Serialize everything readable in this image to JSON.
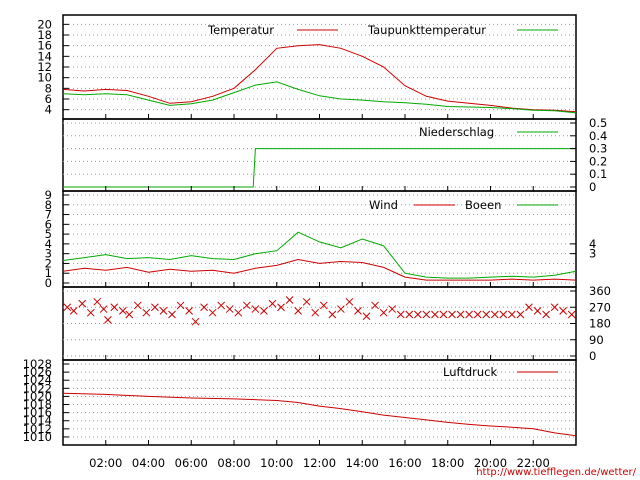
{
  "footer_url": "http://www.tiefflegen.de/wetter/",
  "colors": {
    "red": "#cc0000",
    "green": "#00aa00",
    "grid": "#9a9a9a"
  },
  "chart_data": [
    {
      "type": "line",
      "legend": [
        "Temperatur",
        "Taupunkttemperatur"
      ],
      "y_left_ticks": [
        "20",
        "18",
        "16",
        "14",
        "12",
        "10",
        "8",
        "6",
        "4"
      ],
      "ylim": [
        3,
        21
      ],
      "series": [
        {
          "name": "Temperatur",
          "color": "#cc0000",
          "points": [
            [
              0,
              7.8
            ],
            [
              1,
              7.5
            ],
            [
              2,
              7.8
            ],
            [
              3,
              7.6
            ],
            [
              4,
              6.5
            ],
            [
              5,
              5.2
            ],
            [
              6,
              5.5
            ],
            [
              7,
              6.5
            ],
            [
              8,
              8
            ],
            [
              9,
              11.5
            ],
            [
              10,
              15.5
            ],
            [
              11,
              16
            ],
            [
              12,
              16.2
            ],
            [
              13,
              15.5
            ],
            [
              14,
              14
            ],
            [
              15,
              12
            ],
            [
              16,
              8.5
            ],
            [
              17,
              6.5
            ],
            [
              18,
              5.6
            ],
            [
              19,
              5.2
            ],
            [
              20,
              4.8
            ],
            [
              21,
              4.3
            ],
            [
              22,
              4.0
            ],
            [
              23,
              3.9
            ],
            [
              24,
              3.6
            ]
          ]
        },
        {
          "name": "Taupunkttemperatur",
          "color": "#00aa00",
          "points": [
            [
              0,
              7
            ],
            [
              1,
              6.8
            ],
            [
              2,
              7
            ],
            [
              3,
              6.8
            ],
            [
              4,
              5.8
            ],
            [
              5,
              4.8
            ],
            [
              6,
              5.1
            ],
            [
              7,
              5.8
            ],
            [
              8,
              7.2
            ],
            [
              9,
              8.6
            ],
            [
              10,
              9.2
            ],
            [
              11,
              7.8
            ],
            [
              12,
              6.6
            ],
            [
              13,
              6.0
            ],
            [
              14,
              5.8
            ],
            [
              15,
              5.5
            ],
            [
              16,
              5.3
            ],
            [
              17,
              5.0
            ],
            [
              18,
              4.6
            ],
            [
              19,
              4.5
            ],
            [
              20,
              4.4
            ],
            [
              21,
              4.2
            ],
            [
              22,
              3.9
            ],
            [
              23,
              3.8
            ],
            [
              24,
              3.4
            ]
          ]
        }
      ]
    },
    {
      "type": "line",
      "legend": [
        "Niederschlag"
      ],
      "y_right_ticks": [
        "0.5",
        "0.4",
        "0.3",
        "0.2",
        "0.1",
        "0"
      ],
      "ylim": [
        0,
        0.5
      ],
      "series": [
        {
          "name": "Niederschlag",
          "color": "#00aa00",
          "points": [
            [
              0,
              0
            ],
            [
              8.9,
              0
            ],
            [
              9.0,
              0.3
            ],
            [
              24,
              0.3
            ]
          ]
        }
      ]
    },
    {
      "type": "line",
      "legend": [
        "Wind",
        "Boeen"
      ],
      "y_left_ticks": [
        "9",
        "8",
        "7",
        "6",
        "5",
        "4",
        "3",
        "2",
        "1",
        "0"
      ],
      "y_right_ticks": [
        "4",
        "3"
      ],
      "ylim": [
        0,
        9
      ],
      "series": [
        {
          "name": "Wind",
          "color": "#cc0000",
          "points": [
            [
              0,
              1.2
            ],
            [
              1,
              1.5
            ],
            [
              2,
              1.3
            ],
            [
              3,
              1.6
            ],
            [
              4,
              1.1
            ],
            [
              5,
              1.4
            ],
            [
              6,
              1.2
            ],
            [
              7,
              1.3
            ],
            [
              8,
              1.0
            ],
            [
              9,
              1.5
            ],
            [
              10,
              1.8
            ],
            [
              11,
              2.4
            ],
            [
              12,
              2.0
            ],
            [
              13,
              2.2
            ],
            [
              14,
              2.1
            ],
            [
              15,
              1.6
            ],
            [
              16,
              0.6
            ],
            [
              17,
              0.3
            ],
            [
              18,
              0.3
            ],
            [
              19,
              0.3
            ],
            [
              20,
              0.3
            ],
            [
              21,
              0.4
            ],
            [
              22,
              0.3
            ],
            [
              23,
              0.4
            ],
            [
              24,
              0.3
            ]
          ]
        },
        {
          "name": "Boeen",
          "color": "#00aa00",
          "points": [
            [
              0,
              2.3
            ],
            [
              1,
              2.6
            ],
            [
              2,
              2.9
            ],
            [
              3,
              2.5
            ],
            [
              4,
              2.6
            ],
            [
              5,
              2.4
            ],
            [
              6,
              2.8
            ],
            [
              7,
              2.5
            ],
            [
              8,
              2.4
            ],
            [
              9,
              3.0
            ],
            [
              10,
              3.3
            ],
            [
              11,
              5.2
            ],
            [
              12,
              4.2
            ],
            [
              13,
              3.6
            ],
            [
              14,
              4.5
            ],
            [
              15,
              3.8
            ],
            [
              16,
              1.0
            ],
            [
              17,
              0.6
            ],
            [
              18,
              0.5
            ],
            [
              19,
              0.5
            ],
            [
              20,
              0.6
            ],
            [
              21,
              0.7
            ],
            [
              22,
              0.6
            ],
            [
              23,
              0.8
            ],
            [
              24,
              1.2
            ]
          ]
        }
      ]
    },
    {
      "type": "scatter",
      "y_right_ticks": [
        "360",
        "270",
        "180",
        "90",
        "0"
      ],
      "ylim": [
        0,
        360
      ],
      "marker": "x",
      "series": [
        {
          "name": "",
          "color": "#cc0000",
          "points": [
            [
              0.2,
              270
            ],
            [
              0.5,
              250
            ],
            [
              0.9,
              290
            ],
            [
              1.3,
              240
            ],
            [
              1.6,
              300
            ],
            [
              1.9,
              260
            ],
            [
              2.1,
              200
            ],
            [
              2.4,
              270
            ],
            [
              2.8,
              250
            ],
            [
              3.1,
              230
            ],
            [
              3.5,
              280
            ],
            [
              3.9,
              240
            ],
            [
              4.3,
              270
            ],
            [
              4.7,
              250
            ],
            [
              5.1,
              230
            ],
            [
              5.5,
              280
            ],
            [
              5.9,
              250
            ],
            [
              6.2,
              190
            ],
            [
              6.6,
              270
            ],
            [
              7.0,
              240
            ],
            [
              7.4,
              280
            ],
            [
              7.8,
              260
            ],
            [
              8.2,
              240
            ],
            [
              8.6,
              280
            ],
            [
              9.0,
              260
            ],
            [
              9.4,
              250
            ],
            [
              9.8,
              290
            ],
            [
              10.2,
              270
            ],
            [
              10.6,
              310
            ],
            [
              11.0,
              250
            ],
            [
              11.4,
              300
            ],
            [
              11.8,
              240
            ],
            [
              12.2,
              280
            ],
            [
              12.6,
              230
            ],
            [
              13.0,
              260
            ],
            [
              13.4,
              300
            ],
            [
              13.8,
              250
            ],
            [
              14.2,
              220
            ],
            [
              14.6,
              280
            ],
            [
              15.0,
              240
            ],
            [
              15.4,
              260
            ],
            [
              15.8,
              230
            ],
            [
              16.2,
              230
            ],
            [
              16.6,
              230
            ],
            [
              17.0,
              230
            ],
            [
              17.4,
              230
            ],
            [
              17.8,
              230
            ],
            [
              18.2,
              230
            ],
            [
              18.6,
              230
            ],
            [
              19.0,
              230
            ],
            [
              19.4,
              230
            ],
            [
              19.8,
              230
            ],
            [
              20.2,
              230
            ],
            [
              20.6,
              230
            ],
            [
              21.0,
              230
            ],
            [
              21.4,
              230
            ],
            [
              21.8,
              270
            ],
            [
              22.2,
              250
            ],
            [
              22.6,
              230
            ],
            [
              23.0,
              270
            ],
            [
              23.4,
              250
            ],
            [
              23.8,
              230
            ]
          ]
        }
      ]
    },
    {
      "type": "line",
      "legend": [
        "Luftdruck"
      ],
      "y_left_ticks": [
        "1028",
        "1026",
        "1024",
        "1022",
        "1020",
        "1018",
        "1016",
        "1014",
        "1012",
        "1010"
      ],
      "ylim": [
        1009,
        1028
      ],
      "series": [
        {
          "name": "Luftdruck",
          "color": "#cc0000",
          "points": [
            [
              0,
              1020.8
            ],
            [
              2,
              1020.5
            ],
            [
              4,
              1020.0
            ],
            [
              6,
              1019.6
            ],
            [
              8,
              1019.4
            ],
            [
              10,
              1019.0
            ],
            [
              11,
              1018.5
            ],
            [
              12,
              1017.6
            ],
            [
              13,
              1017.0
            ],
            [
              14,
              1016.2
            ],
            [
              15,
              1015.4
            ],
            [
              16,
              1014.8
            ],
            [
              17,
              1014.2
            ],
            [
              18,
              1013.6
            ],
            [
              19,
              1013.1
            ],
            [
              20,
              1012.7
            ],
            [
              21,
              1012.4
            ],
            [
              22,
              1012.0
            ],
            [
              23,
              1011.0
            ],
            [
              24,
              1010.3
            ]
          ]
        }
      ]
    }
  ],
  "x_tick_labels": [
    "02:00",
    "04:00",
    "06:00",
    "08:00",
    "10:00",
    "12:00",
    "14:00",
    "16:00",
    "18:00",
    "20:00",
    "22:00"
  ]
}
